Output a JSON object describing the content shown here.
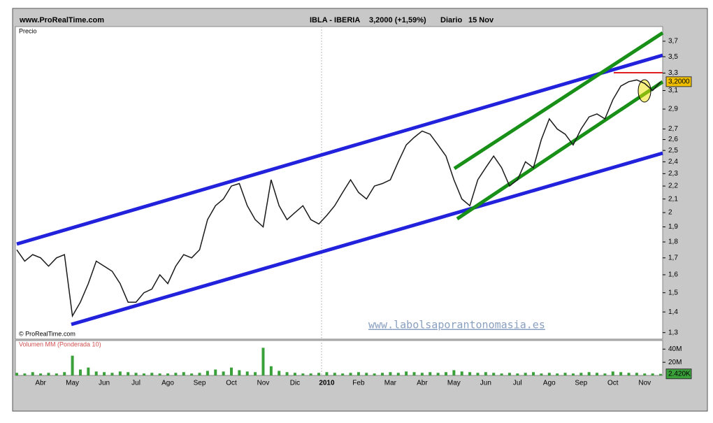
{
  "chart_data": [
    {
      "type": "line",
      "site": "www.ProRealTime.com",
      "title": "IBLA - IBERIA",
      "price_change": "3,2000 (+1,59%)",
      "period": "Diario",
      "date": "15 Nov",
      "y_label": "Precio",
      "copyright": "© ProRealTime.com",
      "watermark": "www.labolsaporantonomasia.es",
      "last_value_label": "3,2000",
      "log_scale": true,
      "color": "#1a1a1a",
      "categories": [
        null,
        null,
        null,
        "Abr",
        null,
        null,
        null,
        "May",
        null,
        null,
        null,
        "Jun",
        null,
        null,
        null,
        "Jul",
        null,
        null,
        null,
        "Ago",
        null,
        null,
        null,
        "Sep",
        null,
        null,
        null,
        "Oct",
        null,
        null,
        null,
        "Nov",
        null,
        null,
        null,
        "Dic",
        null,
        null,
        null,
        "2010",
        null,
        null,
        null,
        "Feb",
        null,
        null,
        null,
        "Mar",
        null,
        null,
        null,
        "Abr",
        null,
        null,
        null,
        "May",
        null,
        null,
        null,
        "Jun",
        null,
        null,
        null,
        "Jul",
        null,
        null,
        null,
        "Ago",
        null,
        null,
        null,
        "Sep",
        null,
        null,
        null,
        "Oct",
        null,
        null,
        null,
        "Nov",
        null,
        null
      ],
      "values": [
        1.75,
        1.68,
        1.72,
        1.7,
        1.65,
        1.7,
        1.72,
        1.38,
        1.45,
        1.55,
        1.68,
        1.65,
        1.62,
        1.55,
        1.45,
        1.45,
        1.5,
        1.52,
        1.6,
        1.55,
        1.65,
        1.72,
        1.7,
        1.75,
        1.95,
        2.05,
        2.1,
        2.2,
        2.22,
        2.05,
        1.95,
        1.9,
        2.25,
        2.05,
        1.95,
        2.0,
        2.05,
        1.95,
        1.92,
        1.98,
        2.05,
        2.15,
        2.25,
        2.15,
        2.1,
        2.2,
        2.22,
        2.25,
        2.4,
        2.55,
        2.62,
        2.68,
        2.65,
        2.55,
        2.45,
        2.25,
        2.1,
        2.05,
        2.25,
        2.35,
        2.45,
        2.35,
        2.2,
        2.25,
        2.4,
        2.35,
        2.6,
        2.8,
        2.7,
        2.65,
        2.55,
        2.7,
        2.82,
        2.85,
        2.8,
        3.0,
        3.15,
        3.2,
        3.22,
        3.18,
        3.1,
        3.2
      ],
      "ylim": [
        1.27,
        3.9
      ],
      "yticks": [
        {
          "value": 1.3,
          "label": "1,3"
        },
        {
          "value": 1.4,
          "label": "1,4"
        },
        {
          "value": 1.5,
          "label": "1,5"
        },
        {
          "value": 1.6,
          "label": "1,6"
        },
        {
          "value": 1.7,
          "label": "1,7"
        },
        {
          "value": 1.8,
          "label": "1,8"
        },
        {
          "value": 1.9,
          "label": "1,9"
        },
        2,
        {
          "value": 2.1,
          "label": "2,1"
        },
        {
          "value": 2.2,
          "label": "2,2"
        },
        {
          "value": 2.3,
          "label": "2,3"
        },
        {
          "value": 2.4,
          "label": "2,4"
        },
        {
          "value": 2.5,
          "label": "2,5"
        },
        {
          "value": 2.6,
          "label": "2,6"
        },
        {
          "value": 2.7,
          "label": "2,7"
        },
        {
          "value": 2.9,
          "label": "2,9"
        },
        {
          "value": 3.1,
          "label": "3,1"
        },
        {
          "value": 3.3,
          "label": "3,3"
        },
        {
          "value": 3.5,
          "label": "3,5"
        },
        {
          "value": 3.7,
          "label": "3,7"
        }
      ]
    },
    {
      "type": "bar",
      "title": "Volumen MM (Ponderada 10)",
      "last_value_label": "2.420K",
      "color": "#3aa03a",
      "values": [
        4000000,
        3000000,
        5000000,
        3000000,
        4000000,
        3000000,
        5000000,
        30000000,
        9000000,
        12000000,
        6000000,
        5000000,
        4000000,
        6000000,
        5000000,
        4000000,
        3000000,
        4000000,
        3000000,
        3000000,
        4000000,
        5000000,
        3000000,
        4000000,
        7000000,
        9000000,
        6000000,
        12000000,
        8000000,
        6000000,
        5000000,
        42000000,
        14000000,
        7000000,
        5000000,
        4000000,
        3000000,
        3000000,
        4000000,
        5000000,
        4000000,
        3000000,
        4000000,
        5000000,
        4000000,
        3000000,
        4000000,
        5000000,
        4000000,
        6000000,
        5000000,
        4000000,
        5000000,
        4000000,
        5000000,
        8000000,
        6000000,
        5000000,
        4000000,
        5000000,
        4000000,
        3000000,
        4000000,
        3000000,
        4000000,
        5000000,
        3000000,
        4000000,
        3000000,
        4000000,
        3000000,
        4000000,
        5000000,
        4000000,
        3000000,
        6000000,
        5000000,
        4000000,
        4000000,
        3000000,
        3000000,
        2420000
      ],
      "ylim": [
        0,
        52000000
      ],
      "yticks": [
        {
          "value": 20000000,
          "label": "20M"
        },
        {
          "value": 40000000,
          "label": "40M"
        }
      ]
    }
  ]
}
